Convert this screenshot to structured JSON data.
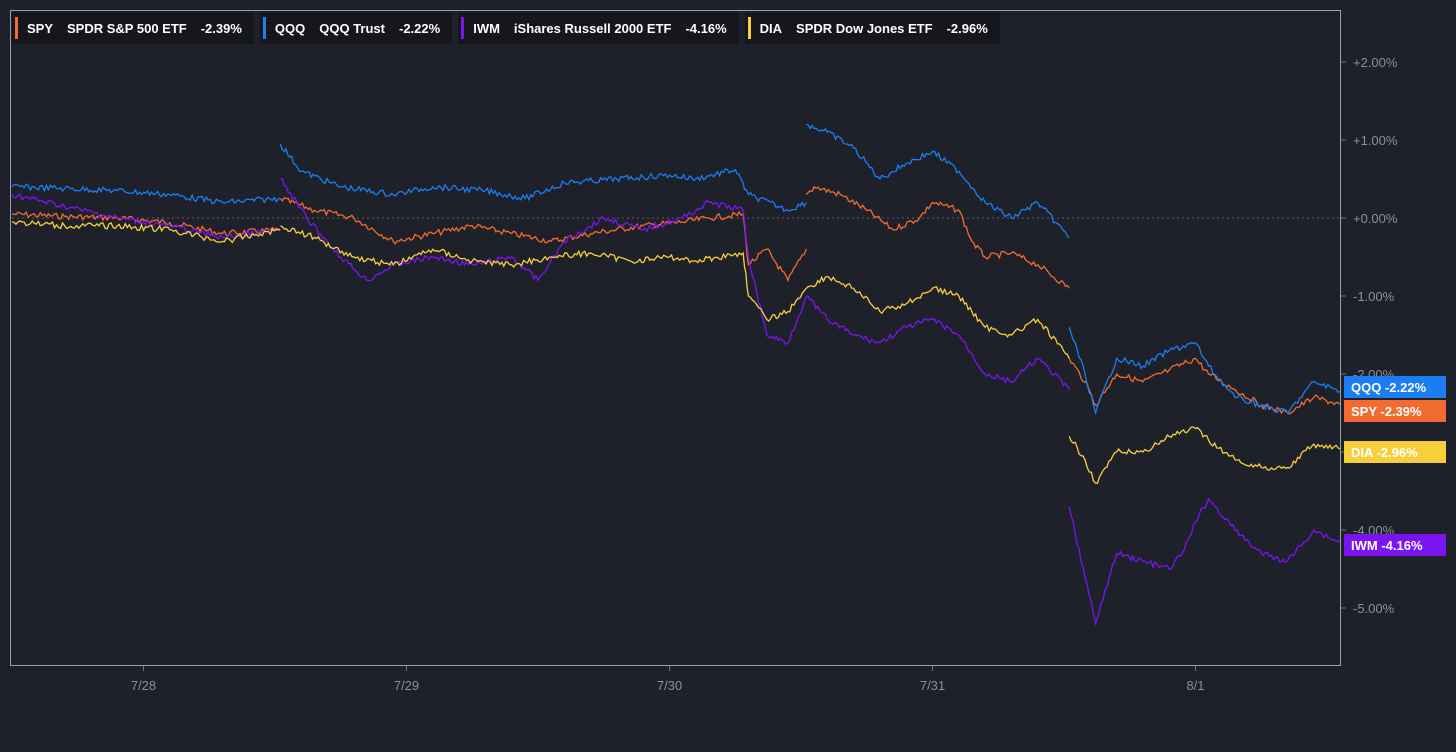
{
  "chart_data": {
    "type": "line",
    "title": "",
    "xlabel": "",
    "ylabel": "",
    "x_ticks": [
      "7/28",
      "7/29",
      "7/30",
      "7/31",
      "8/1"
    ],
    "y_ticks": [
      "+2.00%",
      "+1.00%",
      "+0.00%",
      "-1.00%",
      "-2.00%",
      "-3.00%",
      "-4.00%",
      "-5.00%"
    ],
    "y_tick_values": [
      2,
      1,
      0,
      -1,
      -2,
      -3,
      -4,
      -5
    ],
    "ylim": [
      -5.3,
      2.0
    ],
    "xlim": [
      0,
      5.05
    ],
    "zero_line": true,
    "legend_position": "top-left",
    "series": [
      {
        "ticker": "SPY",
        "name": "SPDR S&P 500 ETF",
        "change": "-2.39%",
        "color": "#f26b2f",
        "points": [
          [
            0,
            0.05
          ],
          [
            0.2,
            0.02
          ],
          [
            0.4,
            0.0
          ],
          [
            0.6,
            -0.06
          ],
          [
            0.8,
            -0.2
          ],
          [
            1.02,
            -0.15
          ],
          [
            1.02,
            0.25
          ],
          [
            1.15,
            0.1
          ],
          [
            1.3,
            0.0
          ],
          [
            1.45,
            -0.3
          ],
          [
            1.6,
            -0.2
          ],
          [
            1.75,
            -0.1
          ],
          [
            1.9,
            -0.2
          ],
          [
            2.05,
            -0.3
          ],
          [
            2.2,
            -0.2
          ],
          [
            2.4,
            -0.1
          ],
          [
            2.55,
            -0.05
          ],
          [
            2.65,
            0.0
          ],
          [
            2.78,
            0.05
          ],
          [
            2.8,
            -0.6
          ],
          [
            2.87,
            -0.4
          ],
          [
            2.95,
            -0.8
          ],
          [
            3.02,
            -0.4
          ],
          [
            3.02,
            0.3
          ],
          [
            3.05,
            0.4
          ],
          [
            3.15,
            0.3
          ],
          [
            3.25,
            0.1
          ],
          [
            3.35,
            -0.15
          ],
          [
            3.45,
            0.0
          ],
          [
            3.5,
            0.2
          ],
          [
            3.6,
            0.1
          ],
          [
            3.65,
            -0.3
          ],
          [
            3.7,
            -0.5
          ],
          [
            3.8,
            -0.45
          ],
          [
            3.9,
            -0.6
          ],
          [
            4.02,
            -0.9
          ],
          [
            4.02,
            -1.8
          ],
          [
            4.08,
            -2.1
          ],
          [
            4.12,
            -2.4
          ],
          [
            4.2,
            -2.0
          ],
          [
            4.3,
            -2.1
          ],
          [
            4.4,
            -1.95
          ],
          [
            4.5,
            -1.8
          ],
          [
            4.55,
            -2.0
          ],
          [
            4.65,
            -2.2
          ],
          [
            4.75,
            -2.4
          ],
          [
            4.85,
            -2.5
          ],
          [
            4.95,
            -2.3
          ],
          [
            5.05,
            -2.39
          ]
        ]
      },
      {
        "ticker": "QQQ",
        "name": "QQQ Trust",
        "change": "-2.22%",
        "color": "#1a7ef2",
        "points": [
          [
            0,
            0.4
          ],
          [
            0.2,
            0.38
          ],
          [
            0.4,
            0.35
          ],
          [
            0.6,
            0.3
          ],
          [
            0.8,
            0.2
          ],
          [
            1.02,
            0.25
          ],
          [
            1.02,
            0.95
          ],
          [
            1.1,
            0.6
          ],
          [
            1.25,
            0.4
          ],
          [
            1.45,
            0.3
          ],
          [
            1.6,
            0.4
          ],
          [
            1.8,
            0.35
          ],
          [
            1.95,
            0.25
          ],
          [
            2.1,
            0.45
          ],
          [
            2.3,
            0.5
          ],
          [
            2.5,
            0.55
          ],
          [
            2.6,
            0.5
          ],
          [
            2.75,
            0.62
          ],
          [
            2.8,
            0.3
          ],
          [
            2.95,
            0.1
          ],
          [
            3.02,
            0.2
          ],
          [
            3.02,
            1.2
          ],
          [
            3.1,
            1.1
          ],
          [
            3.2,
            0.9
          ],
          [
            3.3,
            0.5
          ],
          [
            3.4,
            0.7
          ],
          [
            3.5,
            0.85
          ],
          [
            3.6,
            0.6
          ],
          [
            3.7,
            0.2
          ],
          [
            3.8,
            0.0
          ],
          [
            3.9,
            0.2
          ],
          [
            4.02,
            -0.25
          ],
          [
            4.02,
            -1.4
          ],
          [
            4.08,
            -2.0
          ],
          [
            4.12,
            -2.5
          ],
          [
            4.2,
            -1.8
          ],
          [
            4.3,
            -1.9
          ],
          [
            4.4,
            -1.7
          ],
          [
            4.5,
            -1.6
          ],
          [
            4.55,
            -1.9
          ],
          [
            4.65,
            -2.3
          ],
          [
            4.75,
            -2.4
          ],
          [
            4.85,
            -2.5
          ],
          [
            4.95,
            -2.1
          ],
          [
            5.05,
            -2.22
          ]
        ]
      },
      {
        "ticker": "IWM",
        "name": "iShares Russell 2000 ETF",
        "change": "-4.16%",
        "color": "#7a14f0",
        "points": [
          [
            0,
            0.3
          ],
          [
            0.2,
            0.15
          ],
          [
            0.4,
            0.0
          ],
          [
            0.6,
            -0.1
          ],
          [
            0.8,
            -0.25
          ],
          [
            1.02,
            -0.15
          ],
          [
            1.02,
            0.5
          ],
          [
            1.12,
            0.0
          ],
          [
            1.25,
            -0.5
          ],
          [
            1.35,
            -0.8
          ],
          [
            1.45,
            -0.6
          ],
          [
            1.6,
            -0.5
          ],
          [
            1.75,
            -0.6
          ],
          [
            1.9,
            -0.5
          ],
          [
            2.0,
            -0.8
          ],
          [
            2.1,
            -0.3
          ],
          [
            2.25,
            0.0
          ],
          [
            2.4,
            -0.15
          ],
          [
            2.55,
            0.0
          ],
          [
            2.65,
            0.2
          ],
          [
            2.78,
            0.1
          ],
          [
            2.8,
            -0.5
          ],
          [
            2.87,
            -1.5
          ],
          [
            2.95,
            -1.6
          ],
          [
            3.02,
            -1.0
          ],
          [
            3.1,
            -1.3
          ],
          [
            3.2,
            -1.5
          ],
          [
            3.3,
            -1.6
          ],
          [
            3.4,
            -1.4
          ],
          [
            3.5,
            -1.3
          ],
          [
            3.6,
            -1.5
          ],
          [
            3.7,
            -2.0
          ],
          [
            3.8,
            -2.1
          ],
          [
            3.9,
            -1.8
          ],
          [
            4.02,
            -2.2
          ],
          [
            4.02,
            -3.7
          ],
          [
            4.08,
            -4.6
          ],
          [
            4.12,
            -5.2
          ],
          [
            4.2,
            -4.3
          ],
          [
            4.3,
            -4.4
          ],
          [
            4.4,
            -4.5
          ],
          [
            4.45,
            -4.3
          ],
          [
            4.5,
            -3.9
          ],
          [
            4.55,
            -3.6
          ],
          [
            4.65,
            -4.0
          ],
          [
            4.75,
            -4.3
          ],
          [
            4.85,
            -4.4
          ],
          [
            4.95,
            -4.0
          ],
          [
            5.05,
            -4.16
          ]
        ]
      },
      {
        "ticker": "DIA",
        "name": "SPDR Dow Jones ETF",
        "change": "-2.96%",
        "color": "#f7cf3b",
        "points": [
          [
            0,
            -0.05
          ],
          [
            0.2,
            -0.1
          ],
          [
            0.4,
            -0.1
          ],
          [
            0.6,
            -0.15
          ],
          [
            0.8,
            -0.3
          ],
          [
            1.02,
            -0.15
          ],
          [
            1.02,
            -0.1
          ],
          [
            1.15,
            -0.25
          ],
          [
            1.3,
            -0.5
          ],
          [
            1.45,
            -0.6
          ],
          [
            1.6,
            -0.4
          ],
          [
            1.75,
            -0.55
          ],
          [
            1.9,
            -0.6
          ],
          [
            2.05,
            -0.5
          ],
          [
            2.2,
            -0.45
          ],
          [
            2.35,
            -0.55
          ],
          [
            2.5,
            -0.5
          ],
          [
            2.6,
            -0.55
          ],
          [
            2.78,
            -0.45
          ],
          [
            2.8,
            -1.0
          ],
          [
            2.87,
            -1.3
          ],
          [
            2.95,
            -1.2
          ],
          [
            3.02,
            -0.9
          ],
          [
            3.1,
            -0.75
          ],
          [
            3.2,
            -0.9
          ],
          [
            3.3,
            -1.2
          ],
          [
            3.4,
            -1.1
          ],
          [
            3.5,
            -0.9
          ],
          [
            3.6,
            -1.0
          ],
          [
            3.65,
            -1.2
          ],
          [
            3.7,
            -1.4
          ],
          [
            3.8,
            -1.5
          ],
          [
            3.9,
            -1.3
          ],
          [
            4.02,
            -1.8
          ],
          [
            4.02,
            -2.8
          ],
          [
            4.08,
            -3.1
          ],
          [
            4.12,
            -3.4
          ],
          [
            4.2,
            -3.0
          ],
          [
            4.3,
            -3.0
          ],
          [
            4.4,
            -2.8
          ],
          [
            4.5,
            -2.7
          ],
          [
            4.55,
            -2.85
          ],
          [
            4.65,
            -3.1
          ],
          [
            4.75,
            -3.2
          ],
          [
            4.85,
            -3.2
          ],
          [
            4.95,
            -2.9
          ],
          [
            5.05,
            -2.96
          ]
        ]
      }
    ],
    "end_labels_order": [
      "QQQ",
      "SPY",
      "DIA",
      "IWM"
    ]
  }
}
